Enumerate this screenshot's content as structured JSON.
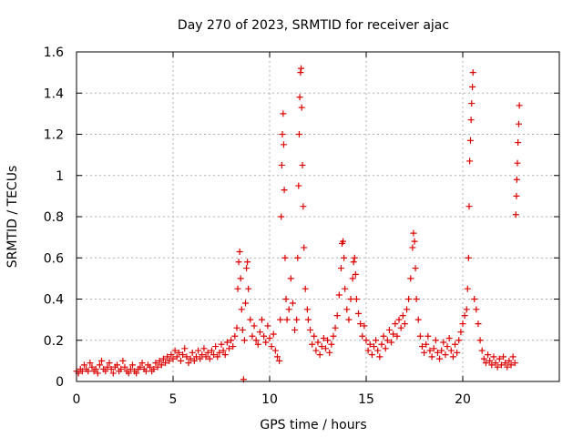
{
  "chart_data": {
    "type": "scatter",
    "title": "Day 270 of 2023, SRMTID for receiver ajac",
    "xlabel": "GPS time / hours",
    "ylabel": "SRMTID / TECUs",
    "xlim": [
      0,
      25
    ],
    "ylim": [
      0,
      1.6
    ],
    "grid": true,
    "marker": "+",
    "color": "#dd0000",
    "xticks": [
      0,
      5,
      10,
      15,
      20
    ],
    "xtick_labels": [
      "0",
      "5",
      "10",
      "15",
      "20"
    ],
    "yticks": [
      0,
      0.2,
      0.4,
      0.6,
      0.8,
      1,
      1.2,
      1.4,
      1.6
    ],
    "ytick_labels": [
      "0",
      "0.2",
      "0.4",
      "0.6",
      "0.8",
      "1",
      "1.2",
      "1.4",
      "1.6"
    ],
    "series": [
      {
        "name": "SRMTID",
        "points": [
          [
            0.0,
            0.05
          ],
          [
            0.1,
            0.04
          ],
          [
            0.2,
            0.06
          ],
          [
            0.3,
            0.05
          ],
          [
            0.4,
            0.08
          ],
          [
            0.5,
            0.06
          ],
          [
            0.6,
            0.05
          ],
          [
            0.7,
            0.09
          ],
          [
            0.8,
            0.07
          ],
          [
            0.9,
            0.05
          ],
          [
            1.0,
            0.06
          ],
          [
            1.1,
            0.04
          ],
          [
            1.2,
            0.08
          ],
          [
            1.3,
            0.1
          ],
          [
            1.4,
            0.06
          ],
          [
            1.5,
            0.05
          ],
          [
            1.6,
            0.07
          ],
          [
            1.7,
            0.09
          ],
          [
            1.8,
            0.06
          ],
          [
            1.9,
            0.04
          ],
          [
            2.0,
            0.07
          ],
          [
            2.1,
            0.08
          ],
          [
            2.2,
            0.05
          ],
          [
            2.3,
            0.06
          ],
          [
            2.4,
            0.1
          ],
          [
            2.5,
            0.07
          ],
          [
            2.6,
            0.05
          ],
          [
            2.7,
            0.04
          ],
          [
            2.8,
            0.06
          ],
          [
            2.9,
            0.08
          ],
          [
            3.0,
            0.05
          ],
          [
            3.1,
            0.04
          ],
          [
            3.2,
            0.06
          ],
          [
            3.3,
            0.07
          ],
          [
            3.4,
            0.09
          ],
          [
            3.5,
            0.06
          ],
          [
            3.6,
            0.05
          ],
          [
            3.7,
            0.08
          ],
          [
            3.8,
            0.07
          ],
          [
            3.9,
            0.05
          ],
          [
            4.0,
            0.06
          ],
          [
            4.1,
            0.09
          ],
          [
            4.2,
            0.07
          ],
          [
            4.3,
            0.1
          ],
          [
            4.4,
            0.08
          ],
          [
            4.5,
            0.11
          ],
          [
            4.6,
            0.09
          ],
          [
            4.7,
            0.12
          ],
          [
            4.8,
            0.1
          ],
          [
            4.9,
            0.13
          ],
          [
            5.0,
            0.11
          ],
          [
            5.1,
            0.15
          ],
          [
            5.2,
            0.12
          ],
          [
            5.3,
            0.14
          ],
          [
            5.4,
            0.1
          ],
          [
            5.5,
            0.13
          ],
          [
            5.6,
            0.16
          ],
          [
            5.7,
            0.12
          ],
          [
            5.8,
            0.09
          ],
          [
            5.9,
            0.11
          ],
          [
            6.0,
            0.14
          ],
          [
            6.1,
            0.1
          ],
          [
            6.2,
            0.12
          ],
          [
            6.3,
            0.15
          ],
          [
            6.4,
            0.11
          ],
          [
            6.5,
            0.13
          ],
          [
            6.6,
            0.16
          ],
          [
            6.7,
            0.12
          ],
          [
            6.8,
            0.14
          ],
          [
            6.9,
            0.11
          ],
          [
            7.0,
            0.15
          ],
          [
            7.1,
            0.13
          ],
          [
            7.2,
            0.17
          ],
          [
            7.3,
            0.12
          ],
          [
            7.4,
            0.14
          ],
          [
            7.5,
            0.18
          ],
          [
            7.6,
            0.15
          ],
          [
            7.7,
            0.13
          ],
          [
            7.8,
            0.19
          ],
          [
            7.9,
            0.16
          ],
          [
            8.0,
            0.2
          ],
          [
            8.1,
            0.17
          ],
          [
            8.2,
            0.22
          ],
          [
            8.3,
            0.26
          ],
          [
            8.35,
            0.45
          ],
          [
            8.4,
            0.58
          ],
          [
            8.45,
            0.63
          ],
          [
            8.5,
            0.5
          ],
          [
            8.55,
            0.35
          ],
          [
            8.6,
            0.25
          ],
          [
            8.65,
            0.01
          ],
          [
            8.7,
            0.2
          ],
          [
            8.75,
            0.38
          ],
          [
            8.8,
            0.55
          ],
          [
            8.85,
            0.58
          ],
          [
            8.9,
            0.45
          ],
          [
            9.0,
            0.3
          ],
          [
            9.1,
            0.22
          ],
          [
            9.2,
            0.27
          ],
          [
            9.3,
            0.2
          ],
          [
            9.4,
            0.18
          ],
          [
            9.5,
            0.24
          ],
          [
            9.6,
            0.3
          ],
          [
            9.7,
            0.22
          ],
          [
            9.8,
            0.19
          ],
          [
            9.9,
            0.27
          ],
          [
            10.0,
            0.21
          ],
          [
            10.1,
            0.17
          ],
          [
            10.2,
            0.23
          ],
          [
            10.3,
            0.15
          ],
          [
            10.4,
            0.12
          ],
          [
            10.5,
            0.1
          ],
          [
            10.55,
            0.3
          ],
          [
            10.6,
            0.8
          ],
          [
            10.63,
            1.05
          ],
          [
            10.66,
            1.2
          ],
          [
            10.7,
            1.3
          ],
          [
            10.73,
            1.15
          ],
          [
            10.76,
            0.93
          ],
          [
            10.8,
            0.6
          ],
          [
            10.85,
            0.4
          ],
          [
            10.9,
            0.3
          ],
          [
            11.0,
            0.35
          ],
          [
            11.1,
            0.5
          ],
          [
            11.2,
            0.38
          ],
          [
            11.3,
            0.25
          ],
          [
            11.4,
            0.3
          ],
          [
            11.45,
            0.6
          ],
          [
            11.5,
            0.95
          ],
          [
            11.53,
            1.2
          ],
          [
            11.56,
            1.38
          ],
          [
            11.6,
            1.5
          ],
          [
            11.63,
            1.52
          ],
          [
            11.66,
            1.33
          ],
          [
            11.7,
            1.05
          ],
          [
            11.74,
            0.85
          ],
          [
            11.78,
            0.65
          ],
          [
            11.85,
            0.45
          ],
          [
            11.95,
            0.35
          ],
          [
            12.0,
            0.3
          ],
          [
            12.1,
            0.25
          ],
          [
            12.2,
            0.18
          ],
          [
            12.3,
            0.22
          ],
          [
            12.4,
            0.15
          ],
          [
            12.5,
            0.19
          ],
          [
            12.6,
            0.13
          ],
          [
            12.7,
            0.17
          ],
          [
            12.8,
            0.21
          ],
          [
            12.9,
            0.16
          ],
          [
            13.0,
            0.2
          ],
          [
            13.1,
            0.14
          ],
          [
            13.2,
            0.18
          ],
          [
            13.3,
            0.22
          ],
          [
            13.4,
            0.26
          ],
          [
            13.5,
            0.32
          ],
          [
            13.6,
            0.42
          ],
          [
            13.7,
            0.55
          ],
          [
            13.75,
            0.67
          ],
          [
            13.8,
            0.68
          ],
          [
            13.85,
            0.6
          ],
          [
            13.9,
            0.45
          ],
          [
            14.0,
            0.35
          ],
          [
            14.1,
            0.3
          ],
          [
            14.2,
            0.4
          ],
          [
            14.3,
            0.5
          ],
          [
            14.35,
            0.58
          ],
          [
            14.4,
            0.6
          ],
          [
            14.45,
            0.52
          ],
          [
            14.5,
            0.4
          ],
          [
            14.6,
            0.33
          ],
          [
            14.7,
            0.28
          ],
          [
            14.8,
            0.22
          ],
          [
            14.9,
            0.27
          ],
          [
            15.0,
            0.2
          ],
          [
            15.1,
            0.15
          ],
          [
            15.2,
            0.18
          ],
          [
            15.3,
            0.13
          ],
          [
            15.4,
            0.17
          ],
          [
            15.5,
            0.2
          ],
          [
            15.6,
            0.15
          ],
          [
            15.7,
            0.12
          ],
          [
            15.8,
            0.18
          ],
          [
            15.9,
            0.22
          ],
          [
            16.0,
            0.16
          ],
          [
            16.1,
            0.2
          ],
          [
            16.2,
            0.25
          ],
          [
            16.3,
            0.19
          ],
          [
            16.4,
            0.23
          ],
          [
            16.5,
            0.28
          ],
          [
            16.6,
            0.22
          ],
          [
            16.7,
            0.3
          ],
          [
            16.8,
            0.26
          ],
          [
            16.9,
            0.32
          ],
          [
            17.0,
            0.28
          ],
          [
            17.1,
            0.35
          ],
          [
            17.2,
            0.4
          ],
          [
            17.3,
            0.5
          ],
          [
            17.4,
            0.65
          ],
          [
            17.45,
            0.72
          ],
          [
            17.5,
            0.68
          ],
          [
            17.55,
            0.55
          ],
          [
            17.6,
            0.4
          ],
          [
            17.7,
            0.3
          ],
          [
            17.8,
            0.22
          ],
          [
            17.9,
            0.17
          ],
          [
            18.0,
            0.14
          ],
          [
            18.1,
            0.18
          ],
          [
            18.2,
            0.22
          ],
          [
            18.3,
            0.15
          ],
          [
            18.4,
            0.12
          ],
          [
            18.5,
            0.16
          ],
          [
            18.6,
            0.2
          ],
          [
            18.7,
            0.14
          ],
          [
            18.8,
            0.11
          ],
          [
            18.9,
            0.15
          ],
          [
            19.0,
            0.19
          ],
          [
            19.1,
            0.13
          ],
          [
            19.2,
            0.17
          ],
          [
            19.3,
            0.21
          ],
          [
            19.4,
            0.15
          ],
          [
            19.5,
            0.12
          ],
          [
            19.6,
            0.18
          ],
          [
            19.7,
            0.14
          ],
          [
            19.8,
            0.2
          ],
          [
            19.9,
            0.24
          ],
          [
            20.0,
            0.28
          ],
          [
            20.1,
            0.32
          ],
          [
            20.2,
            0.35
          ],
          [
            20.25,
            0.45
          ],
          [
            20.3,
            0.6
          ],
          [
            20.33,
            0.85
          ],
          [
            20.36,
            1.07
          ],
          [
            20.4,
            1.17
          ],
          [
            20.43,
            1.27
          ],
          [
            20.46,
            1.35
          ],
          [
            20.5,
            1.43
          ],
          [
            20.53,
            1.5
          ],
          [
            20.6,
            0.4
          ],
          [
            20.7,
            0.35
          ],
          [
            20.8,
            0.28
          ],
          [
            20.9,
            0.2
          ],
          [
            21.0,
            0.15
          ],
          [
            21.1,
            0.11
          ],
          [
            21.2,
            0.09
          ],
          [
            21.3,
            0.13
          ],
          [
            21.4,
            0.1
          ],
          [
            21.5,
            0.08
          ],
          [
            21.6,
            0.12
          ],
          [
            21.7,
            0.09
          ],
          [
            21.8,
            0.07
          ],
          [
            21.9,
            0.11
          ],
          [
            22.0,
            0.08
          ],
          [
            22.1,
            0.12
          ],
          [
            22.2,
            0.09
          ],
          [
            22.3,
            0.07
          ],
          [
            22.4,
            0.1
          ],
          [
            22.5,
            0.08
          ],
          [
            22.6,
            0.12
          ],
          [
            22.7,
            0.09
          ],
          [
            22.75,
            0.81
          ],
          [
            22.78,
            0.9
          ],
          [
            22.8,
            0.98
          ],
          [
            22.83,
            1.06
          ],
          [
            22.86,
            1.16
          ],
          [
            22.9,
            1.25
          ],
          [
            22.93,
            1.34
          ]
        ]
      }
    ]
  }
}
